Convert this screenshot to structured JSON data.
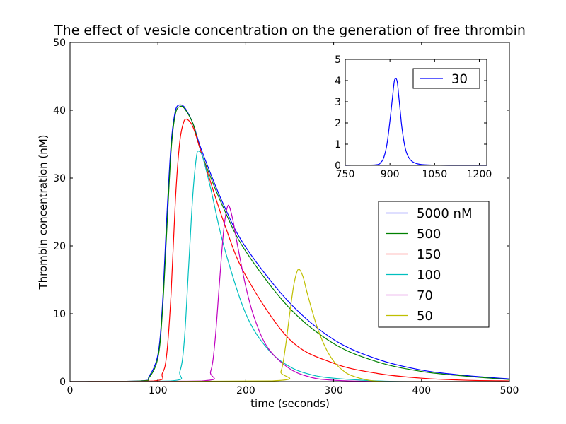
{
  "chart_data": [
    {
      "type": "line",
      "title": "The effect of vesicle concentration on the generation of free thrombin",
      "xlabel": "time (seconds)",
      "ylabel": "Thrombin concentration (nM)",
      "xlim": [
        0,
        500
      ],
      "ylim": [
        0,
        50
      ],
      "xticks": [
        "0",
        "100",
        "200",
        "300",
        "400",
        "500"
      ],
      "yticks": [
        "0",
        "10",
        "20",
        "30",
        "40",
        "50"
      ],
      "grid": false,
      "legend": {
        "position": "lower-right"
      },
      "series": [
        {
          "name": "5000 nM",
          "color": "#0000ff",
          "x": [
            0,
            80,
            90,
            100,
            105,
            110,
            115,
            120,
            125,
            130,
            140,
            150,
            175,
            200,
            250,
            300,
            350,
            400,
            450,
            500
          ],
          "y": [
            0,
            0.1,
            0.8,
            4,
            11,
            24,
            35,
            40,
            40.8,
            40.5,
            38,
            34,
            26,
            19.8,
            11.6,
            6.2,
            3.3,
            1.7,
            0.9,
            0.4
          ]
        },
        {
          "name": "500",
          "color": "#008000",
          "x": [
            0,
            80,
            90,
            100,
            105,
            110,
            115,
            120,
            126,
            130,
            140,
            150,
            175,
            200,
            250,
            300,
            350,
            400,
            450,
            500
          ],
          "y": [
            0,
            0.1,
            0.6,
            3.5,
            10,
            22,
            34,
            39.5,
            40.6,
            40.3,
            38,
            33.5,
            25.5,
            19.2,
            10.8,
            5.6,
            2.9,
            1.5,
            0.8,
            0.3
          ]
        },
        {
          "name": "150",
          "color": "#ff0000",
          "x": [
            0,
            95,
            105,
            110,
            115,
            120,
            125,
            130,
            133,
            140,
            150,
            175,
            200,
            250,
            300,
            350,
            400,
            450,
            500
          ],
          "y": [
            0,
            0.1,
            1.2,
            4,
            13,
            27,
            35.5,
            38.5,
            38.7,
            37.5,
            33.5,
            23.5,
            15.6,
            6.2,
            2.7,
            1.2,
            0.5,
            0.2,
            0.1
          ]
        },
        {
          "name": "100",
          "color": "#00bfbf",
          "x": [
            0,
            115,
            125,
            130,
            135,
            140,
            145,
            150,
            160,
            175,
            200,
            225,
            250,
            275,
            300,
            350,
            400,
            500
          ],
          "y": [
            0,
            0.1,
            1.5,
            6,
            17,
            28,
            34,
            33.5,
            28.5,
            20,
            10,
            4.8,
            2.2,
            1,
            0.5,
            0.1,
            0,
            0
          ]
        },
        {
          "name": "70",
          "color": "#bf00bf",
          "x": [
            0,
            150,
            160,
            165,
            170,
            175,
            180,
            185,
            190,
            200,
            210,
            225,
            250,
            275,
            300,
            350,
            400,
            500
          ],
          "y": [
            0,
            0.1,
            1.5,
            6,
            14.5,
            22.5,
            26,
            24,
            20.5,
            14,
            9.3,
            5,
            1.9,
            0.6,
            0.2,
            0,
            0,
            0
          ]
        },
        {
          "name": "50",
          "color": "#bfbf00",
          "x": [
            0,
            230,
            240,
            245,
            250,
            255,
            260,
            265,
            270,
            280,
            290,
            300,
            310,
            320,
            340,
            360,
            400,
            500
          ],
          "y": [
            0,
            0.1,
            1.5,
            5,
            10,
            14.5,
            16.6,
            15.5,
            13,
            8.5,
            5.2,
            3,
            1.7,
            0.9,
            0.2,
            0,
            0,
            0
          ]
        }
      ]
    },
    {
      "type": "line",
      "title": "",
      "xlabel": "",
      "ylabel": "",
      "xlim": [
        750,
        1225
      ],
      "ylim": [
        0,
        5
      ],
      "xticks": [
        "750",
        "900",
        "1050",
        "1200"
      ],
      "yticks": [
        "0",
        "1",
        "2",
        "3",
        "4",
        "5"
      ],
      "grid": false,
      "legend": {
        "position": "top-right"
      },
      "series": [
        {
          "name": "30",
          "color": "#0000ff",
          "x": [
            750,
            850,
            870,
            880,
            890,
            900,
            910,
            915,
            920,
            925,
            930,
            935,
            940,
            950,
            960,
            975,
            1000,
            1050,
            1100,
            1225
          ],
          "y": [
            0,
            0.02,
            0.15,
            0.4,
            1,
            2.1,
            3.4,
            4,
            4.1,
            3.9,
            3.2,
            2.5,
            1.8,
            0.9,
            0.45,
            0.18,
            0.05,
            0.01,
            0,
            0
          ]
        }
      ]
    }
  ]
}
